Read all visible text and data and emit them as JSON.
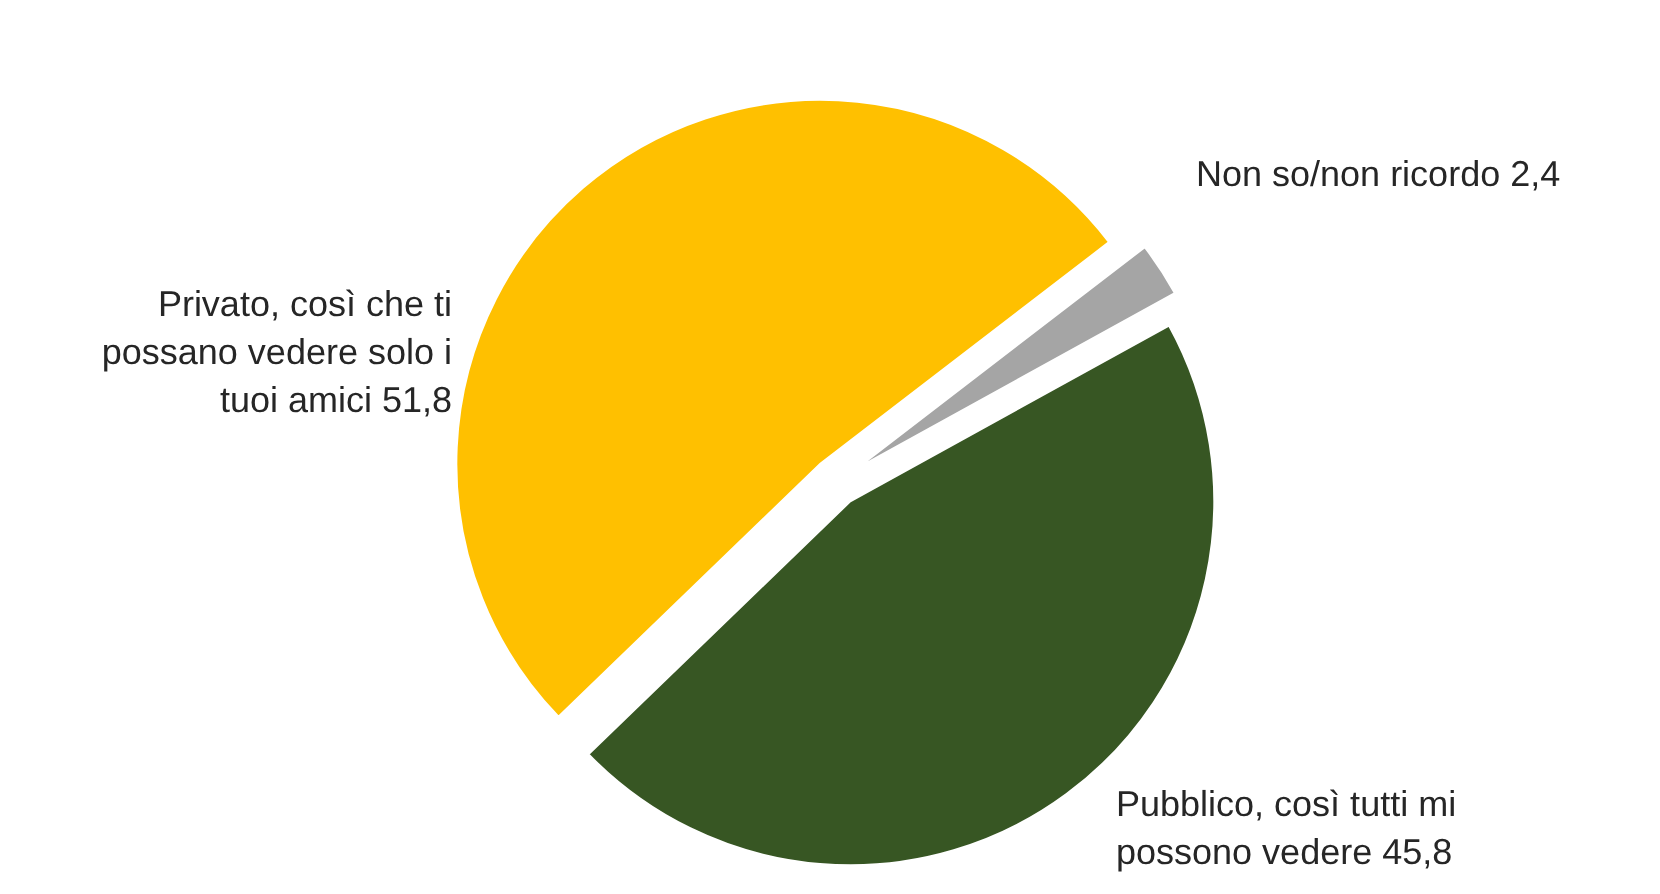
{
  "chart_data": {
    "type": "pie",
    "categories": [
      "Privato, così che ti possano vedere solo i tuoi amici",
      "Non so/non ricordo",
      "Pubblico, così tutti mi possono vedere"
    ],
    "values": [
      51.8,
      2.4,
      45.8
    ],
    "value_labels": [
      "51,8",
      "2,4",
      "45,8"
    ],
    "colors": [
      "#ffc000",
      "#a5a5a5",
      "#375623"
    ]
  }
}
